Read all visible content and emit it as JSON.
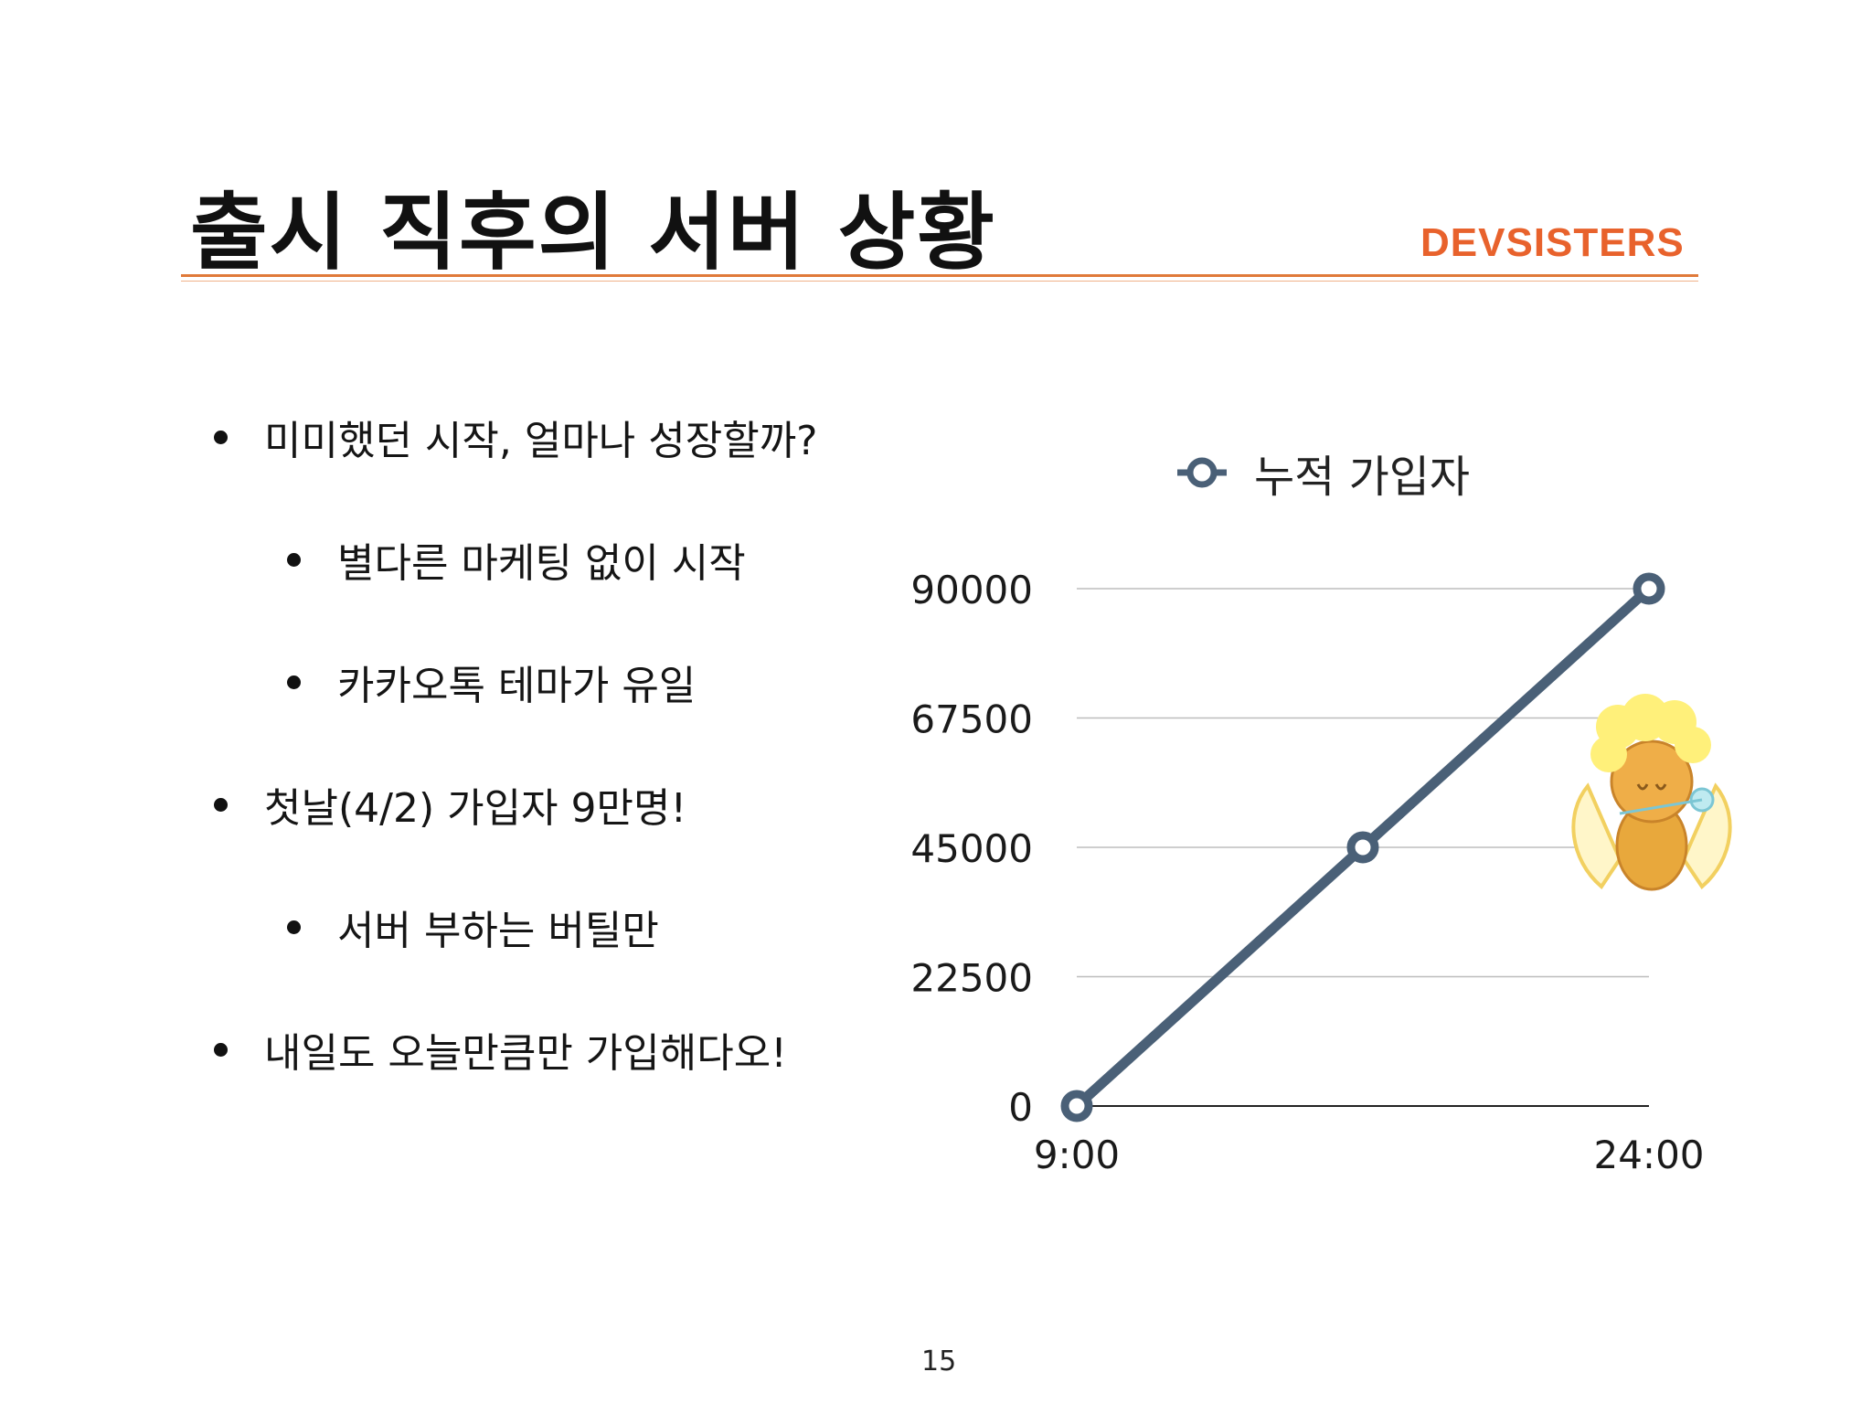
{
  "slide": {
    "title": "출시 직후의 서버 상황",
    "brand": "DEVSISTERS",
    "page_number": "15"
  },
  "bullets": [
    {
      "level": 1,
      "text": "미미했던 시작, 얼마나 성장할까?"
    },
    {
      "level": 2,
      "text": "별다른 마케팅 없이 시작"
    },
    {
      "level": 2,
      "text": "카카오톡 테마가 유일"
    },
    {
      "level": 1,
      "text": "첫날(4/2) 가입자 9만명!"
    },
    {
      "level": 2,
      "text": "서버 부하는 버틸만"
    },
    {
      "level": 1,
      "text": "내일도 오늘만큼만 가입해다오!"
    }
  ],
  "colors": {
    "accent": "#e8622c",
    "series": "#4a6077",
    "grid": "#bdbdbd"
  },
  "chart_data": {
    "type": "line",
    "title": "",
    "xlabel": "",
    "ylabel": "",
    "x_tick_labels": [
      "9:00",
      "24:00"
    ],
    "y_tick_labels": [
      "0",
      "22500",
      "45000",
      "67500",
      "90000"
    ],
    "ylim": [
      0,
      90000
    ],
    "grid": true,
    "legend_position": "top",
    "series": [
      {
        "name": "누적 가입자",
        "x": [
          0,
          0.5,
          1
        ],
        "values": [
          0,
          45000,
          90000
        ]
      }
    ]
  }
}
